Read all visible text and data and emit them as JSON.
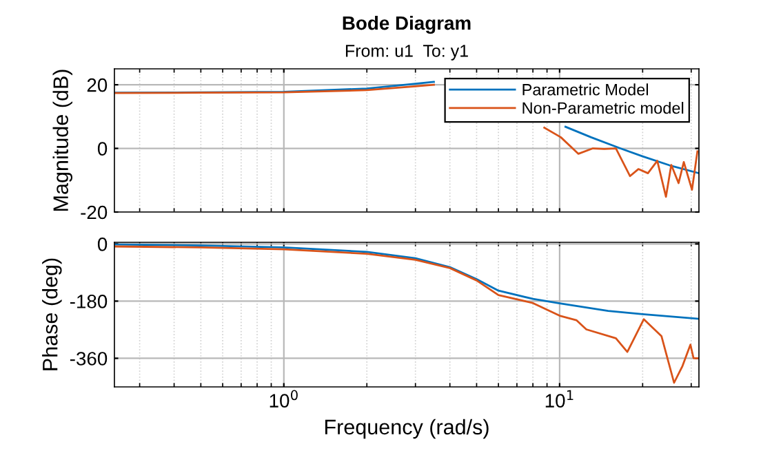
{
  "chart_data": [
    {
      "type": "line",
      "title": "Bode Diagram",
      "subtitle": "From: u1  To: y1",
      "ylabel": "Magnitude (dB)",
      "log": "x",
      "grid": true,
      "legend": "top right",
      "tick_labels": "y",
      "xlim": [
        0.243,
        32
      ],
      "xticks": [
        1,
        10
      ],
      "ylim": [
        -20,
        25
      ],
      "yticks": [
        -20,
        0,
        20
      ],
      "series": [
        {
          "name": "Parametric Model",
          "color": "#0072bd",
          "x": [
            0.243,
            0.5,
            1,
            2,
            3,
            3.5,
            5,
            10.5,
            13,
            16.6,
            20,
            25,
            32
          ],
          "values": [
            17.5,
            17.6,
            17.8,
            18.8,
            20.3,
            20.9,
            null,
            6.8,
            3.5,
            0,
            -2.5,
            -5.3,
            -7.8
          ]
        },
        {
          "name": "Non-Parametric model",
          "color": "#d95319",
          "x": [
            0.243,
            0.5,
            1,
            2,
            3,
            3.5,
            5,
            8.8,
            10.1,
            11.7,
            13.2,
            14.5,
            16,
            18,
            19.3,
            20.9,
            22.6,
            24.3,
            25.4,
            27,
            28.2,
            30.2,
            31.6
          ],
          "values": [
            17.4,
            17.5,
            17.6,
            18.3,
            19.5,
            20.0,
            null,
            6.5,
            3.5,
            -1.7,
            0,
            -0.2,
            0,
            -8.7,
            -6.5,
            -7.8,
            -3.9,
            -15.2,
            -5.2,
            -10.9,
            -4.3,
            -13,
            -0.9
          ]
        }
      ]
    },
    {
      "type": "line",
      "xlabel": "Frequency (rad/s)",
      "ylabel": "Phase (deg)",
      "log": "x",
      "grid": true,
      "xlim": [
        0.243,
        32
      ],
      "xticks": [
        {
          "value": 1,
          "label": "10$^{0}$"
        },
        {
          "value": 10,
          "label": "10$^{1}$"
        }
      ],
      "ylim": [
        -450,
        5
      ],
      "yticks": [
        -360,
        -180,
        0
      ],
      "series": [
        {
          "color": "#0072bd",
          "x": [
            0.243,
            0.5,
            1,
            2,
            3,
            4,
            5,
            6,
            8,
            10,
            15,
            20,
            32
          ],
          "values": [
            -2,
            -5,
            -11,
            -25,
            -45,
            -73,
            -111,
            -147,
            -173,
            -187,
            -211,
            -221,
            -236
          ]
        },
        {
          "color": "#d95319",
          "x": [
            0.243,
            0.5,
            1,
            2,
            3,
            4,
            5,
            6,
            8,
            10,
            11.5,
            12.5,
            16,
            17.6,
            20.2,
            23.4,
            26,
            27.9,
            29.8,
            30.6,
            32
          ],
          "values": [
            -8,
            -11,
            -17,
            -31,
            -50,
            -76,
            -115,
            -161,
            -186,
            -226,
            -240,
            -269,
            -297,
            -340,
            -237,
            -290,
            -437,
            -384,
            -317,
            -360,
            -360
          ]
        }
      ]
    }
  ]
}
